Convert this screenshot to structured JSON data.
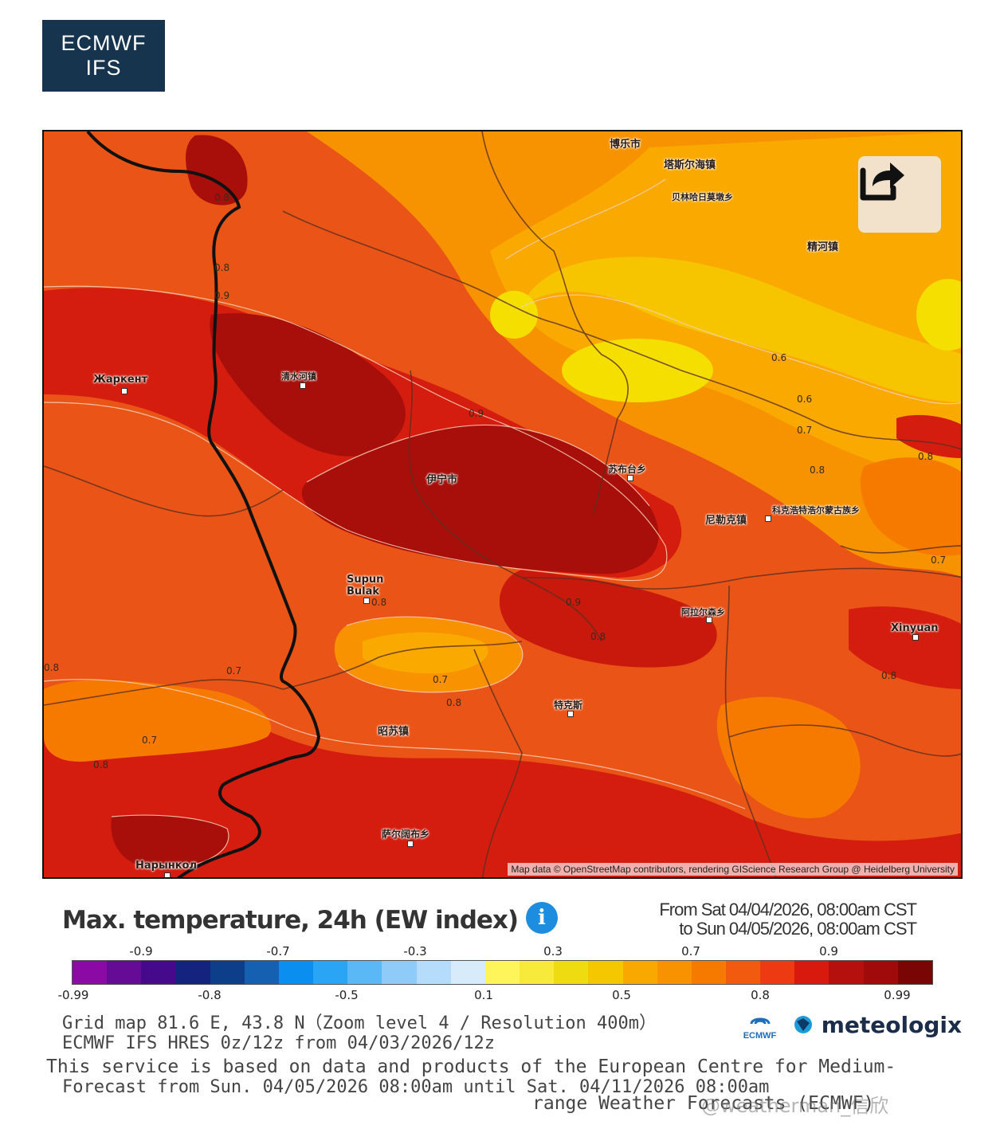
{
  "brand": {
    "line1": "ECMWF",
    "line2": "IFS"
  },
  "map": {
    "attribution": "Map data © OpenStreetMap contributors, rendering GIScience Research Group @ Heidelberg University",
    "places": [
      {
        "name": "博乐市"
      },
      {
        "name": "塔斯尔海镇"
      },
      {
        "name": "贝林哈日莫墩乡"
      },
      {
        "name": "精河镇"
      },
      {
        "name": "Жаркент"
      },
      {
        "name": "清水河镇"
      },
      {
        "name": "伊宁市"
      },
      {
        "name": "苏布台乡"
      },
      {
        "name": "尼勒克镇"
      },
      {
        "name": "科克浩特浩尔蒙古族乡"
      },
      {
        "name": "Supun Bulak"
      },
      {
        "name": "阿拉尔森乡"
      },
      {
        "name": "Xinyuan"
      },
      {
        "name": "特克斯"
      },
      {
        "name": "昭苏镇"
      },
      {
        "name": "萨尔阔布乡"
      },
      {
        "name": "Нарынкол"
      }
    ],
    "isolines": [
      "0.8",
      "0.8",
      "0.9",
      "0.9",
      "0.6",
      "0.6",
      "0.7",
      "0.8",
      "0.8",
      "0.7",
      "0.8",
      "0.9",
      "0.8",
      "0.8",
      "0.7",
      "0.7",
      "0.8",
      "0.7",
      "0.8",
      "0.8"
    ]
  },
  "title": "Max. temperature, 24h (EW index)",
  "date_range": {
    "from": "From Sat 04/04/2026, 08:00am CST",
    "to": "to Sun 04/05/2026, 08:00am CST"
  },
  "legend": {
    "top_labels": [
      "-0.9",
      "-0.7",
      "-0.3",
      "0.3",
      "0.7",
      "0.9"
    ],
    "bottom_labels": [
      "-0.99",
      "-0.8",
      "-0.5",
      "0.1",
      "0.5",
      "0.8",
      "0.99"
    ],
    "colors": [
      "#8b0aa5",
      "#650b95",
      "#450a8c",
      "#14237e",
      "#0d3e8a",
      "#1560b0",
      "#0a8ff0",
      "#2aa5f5",
      "#5ab8f7",
      "#8ecbf9",
      "#b6dcfb",
      "#d7ebfb",
      "#fdf55a",
      "#f8ea3a",
      "#efdc10",
      "#f4c700",
      "#f9a800",
      "#f99200",
      "#f77a00",
      "#f25a0f",
      "#ee3a12",
      "#d81a0e",
      "#b5100e",
      "#a00a0a",
      "#7a0505"
    ]
  },
  "meta": {
    "grid": "Grid map 81.6 E, 43.8 N（Zoom level 4 / Resolution 400m）",
    "model": "ECMWF IFS HRES 0z/12z from 04/03/2026/12z",
    "forecast": "Forecast from Sun. 04/05/2026 08:00am until Sat. 04/11/2026 08:00am",
    "service_line1": "This service is based on data and products of the European Centre for Medium-",
    "service_line2": "range Weather Forecasts (ECMWF)"
  },
  "logos": {
    "ecmwf_small": "ECMWF",
    "meteologix": "meteologix"
  },
  "watermark": "@weatherman_信欣"
}
